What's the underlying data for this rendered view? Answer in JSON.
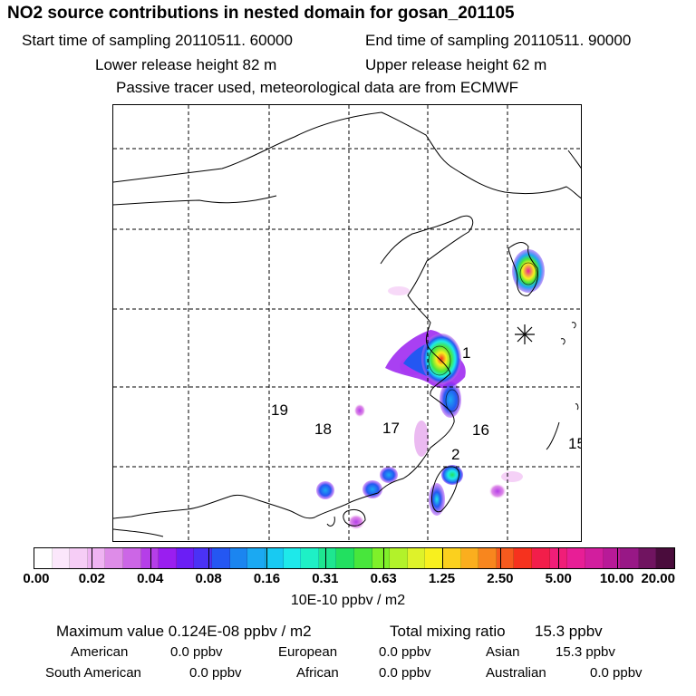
{
  "header": {
    "title": "NO2 source contributions in nested domain for gosan_201105",
    "start_time": "Start time of sampling 20110511. 60000",
    "end_time": "End time of sampling 20110511. 90000",
    "lower_release": "Lower release height   82 m",
    "upper_release": "Upper release height   62 m",
    "note": "Passive tracer used, meteorological data are from ECMWF"
  },
  "region_labels": [
    "1",
    "2",
    "15",
    "16",
    "17",
    "18",
    "19"
  ],
  "colorbar": {
    "colors": [
      "#ffffff",
      "#fbe7fb",
      "#f6cdf6",
      "#efb3f2",
      "#de8ce8",
      "#cc66e6",
      "#b53ee8",
      "#9a1ef0",
      "#6b1ef5",
      "#4a32f5",
      "#2457f2",
      "#1b85f0",
      "#1ba9f2",
      "#18caf2",
      "#1ee9ea",
      "#1ef0c6",
      "#1ee690",
      "#22e060",
      "#48e63c",
      "#7ff02a",
      "#b2f22a",
      "#def22a",
      "#f8f01e",
      "#fbd01e",
      "#fbae1e",
      "#f8861e",
      "#f65a1e",
      "#f6321e",
      "#f21e4a",
      "#f01e78",
      "#e81e96",
      "#d21e9e",
      "#b81a98",
      "#981886",
      "#701460",
      "#4a0c3c"
    ],
    "ticks": [
      "0.00",
      "0.02",
      "0.04",
      "0.08",
      "0.16",
      "0.31",
      "0.63",
      "1.25",
      "2.50",
      "5.00",
      "10.00",
      "20.00"
    ],
    "units": "10E-10 ppbv / m2"
  },
  "stats": {
    "max_value": "Maximum value  0.124E-08 ppbv / m2",
    "total": "Total mixing ratio",
    "total_value": "15.3 ppbv",
    "american_label": "American",
    "american_value": "0.0 ppbv",
    "european_label": "European",
    "european_value": "0.0 ppbv",
    "asian_label": "Asian",
    "asian_value": "15.3 ppbv",
    "south_american_label": "South American",
    "south_american_value": "0.0 ppbv",
    "african_label": "African",
    "african_value": "0.0 ppbv",
    "australian_label": "Australian",
    "australian_value": "0.0 ppbv"
  }
}
